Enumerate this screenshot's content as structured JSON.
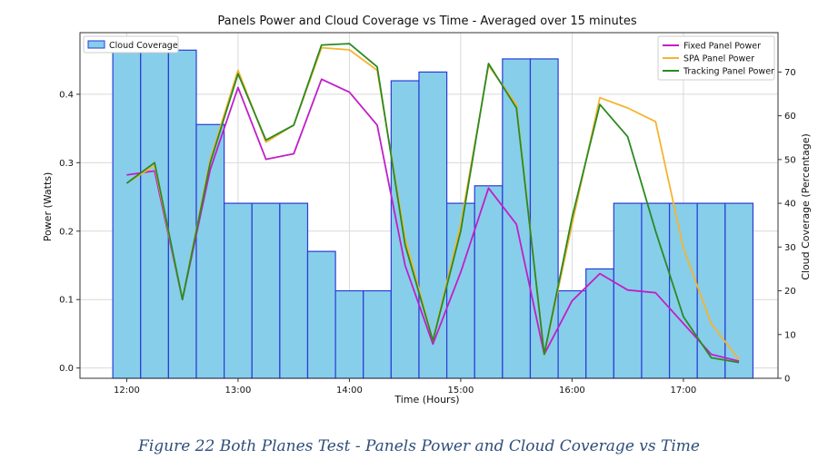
{
  "chart_data": {
    "type": "bar+line",
    "title": "Panels Power and Cloud Coverage vs Time - Averaged over 15 minutes",
    "xlabel": "Time (Hours)",
    "ylabel_left": "Power (Watts)",
    "ylabel_right": "Cloud Coverage (Percentage)",
    "x_ticks": [
      "12:00",
      "13:00",
      "14:00",
      "15:00",
      "16:00",
      "17:00"
    ],
    "x_tick_hours": [
      12,
      13,
      14,
      15,
      16,
      17
    ],
    "xlim_hours": [
      11.58,
      17.85
    ],
    "y_left_ticks": [
      "0.0",
      "0.1",
      "0.2",
      "0.3",
      "0.4"
    ],
    "y_left_tick_values": [
      0,
      0.1,
      0.2,
      0.3,
      0.4
    ],
    "ylim_left": [
      -0.015,
      0.49
    ],
    "y_right_ticks": [
      "0",
      "10",
      "20",
      "30",
      "40",
      "50",
      "60",
      "70"
    ],
    "y_right_tick_values": [
      0,
      10,
      20,
      30,
      40,
      50,
      60,
      70
    ],
    "ylim_right": [
      0,
      79
    ],
    "grid": true,
    "times": [
      "12:00",
      "12:15",
      "12:30",
      "12:45",
      "13:00",
      "13:15",
      "13:30",
      "13:45",
      "14:00",
      "14:15",
      "14:30",
      "14:45",
      "15:00",
      "15:15",
      "15:30",
      "15:45",
      "16:00",
      "16:15",
      "16:30",
      "16:45",
      "17:00",
      "17:15",
      "17:30"
    ],
    "bars": {
      "name": "Cloud Coverage",
      "color": "#87ceeb",
      "edge_color": "#2a3bd6",
      "values": [
        75,
        75,
        75,
        58,
        40,
        40,
        40,
        29,
        20,
        20,
        68,
        70,
        40,
        44,
        73,
        73,
        20,
        25,
        40,
        40,
        40,
        40,
        40
      ]
    },
    "series": [
      {
        "name": "Fixed Panel Power",
        "color": "#c21fc7",
        "values": [
          0.282,
          0.288,
          0.1,
          0.29,
          0.41,
          0.305,
          0.313,
          0.422,
          0.403,
          0.355,
          0.15,
          0.035,
          0.14,
          0.263,
          0.21,
          0.02,
          0.098,
          0.138,
          0.114,
          0.11,
          0.065,
          0.02,
          0.01
        ]
      },
      {
        "name": "SPA Panel Power",
        "color": "#f5b430",
        "values": [
          0.27,
          0.296,
          0.1,
          0.305,
          0.435,
          0.33,
          0.355,
          0.468,
          0.465,
          0.435,
          0.19,
          0.04,
          0.21,
          0.442,
          0.385,
          0.02,
          0.21,
          0.395,
          0.38,
          0.36,
          0.175,
          0.065,
          0.012
        ]
      },
      {
        "name": "Tracking Panel Power",
        "color": "#2b8a22",
        "values": [
          0.27,
          0.3,
          0.1,
          0.3,
          0.43,
          0.333,
          0.355,
          0.472,
          0.474,
          0.44,
          0.18,
          0.04,
          0.2,
          0.445,
          0.38,
          0.02,
          0.22,
          0.385,
          0.338,
          0.2,
          0.075,
          0.015,
          0.008
        ]
      }
    ],
    "legend_left_position": "top-left",
    "legend_right_position": "top-right"
  },
  "caption": "Figure 22 Both Planes Test - Panels Power and Cloud Coverage vs Time"
}
